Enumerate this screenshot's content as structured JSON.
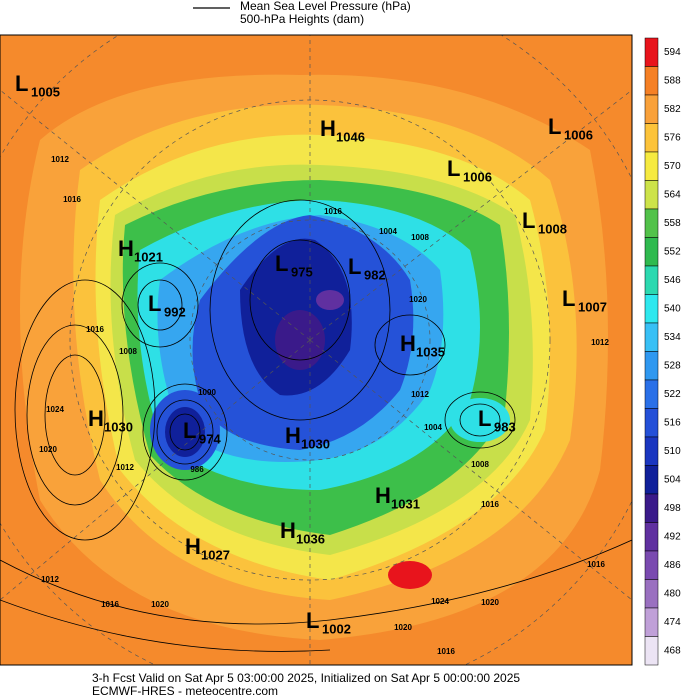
{
  "legend": {
    "line_label": "Mean Sea Level Pressure (hPa)",
    "fill_label": "500-hPa Heights (dam)"
  },
  "colorbar": {
    "levels": [
      594,
      588,
      582,
      576,
      570,
      564,
      558,
      552,
      546,
      540,
      534,
      528,
      522,
      516,
      510,
      504,
      498,
      492,
      486,
      480,
      474,
      468
    ],
    "colors": [
      "#e8141c",
      "#f58025",
      "#f9a13a",
      "#fcc33a",
      "#f6ea40",
      "#cde34a",
      "#52c24a",
      "#2fba4f",
      "#2cd9b0",
      "#2ee8ee",
      "#38c0f5",
      "#2f98f0",
      "#2a70e8",
      "#2450d8",
      "#1a36c0",
      "#10209a",
      "#3a1a8a",
      "#6030a0",
      "#7a4ab0",
      "#9a70c0",
      "#c0a0d8",
      "#ece4f4"
    ]
  },
  "centers": [
    {
      "type": "L",
      "value": 1005
    },
    {
      "type": "H",
      "value": 1046
    },
    {
      "type": "L",
      "value": 1006
    },
    {
      "type": "L",
      "value": 1006
    },
    {
      "type": "L",
      "value": 1008
    },
    {
      "type": "H",
      "value": 1021
    },
    {
      "type": "L",
      "value": 975
    },
    {
      "type": "L",
      "value": 982
    },
    {
      "type": "L",
      "value": 992
    },
    {
      "type": "L",
      "value": 1007
    },
    {
      "type": "H",
      "value": 1035
    },
    {
      "type": "H",
      "value": 1030
    },
    {
      "type": "L",
      "value": 974
    },
    {
      "type": "H",
      "value": 1030
    },
    {
      "type": "L",
      "value": 983
    },
    {
      "type": "H",
      "value": 1031
    },
    {
      "type": "H",
      "value": 1036
    },
    {
      "type": "H",
      "value": 1027
    },
    {
      "type": "L",
      "value": 1002
    }
  ],
  "contour_labels": [
    1012,
    1016,
    1016,
    1008,
    1024,
    1020,
    1012,
    986,
    1016,
    1004,
    1008,
    1020,
    1012,
    1004,
    1008,
    1016,
    1016,
    1012,
    1012,
    1016,
    1020,
    1024,
    1020,
    1020,
    1016,
    1000
  ],
  "footer": {
    "line1": "3-h Fcst Valid on Sat Apr  5 03:00:00 2025, Initialized on Sat Apr  5 00:00:00 2025",
    "line2": "ECMWF-HRES - meteocentre.com"
  }
}
